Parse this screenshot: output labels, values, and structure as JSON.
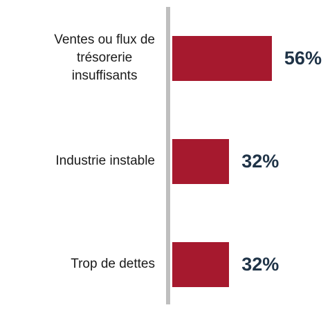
{
  "chart_data": {
    "type": "bar",
    "orientation": "horizontal",
    "categories": [
      "Ventes ou flux de\ntrésorerie\ninsuffisants",
      "Industrie instable",
      "Trop de dettes"
    ],
    "values": [
      56,
      32,
      32
    ],
    "value_labels": [
      "56%",
      "32%",
      "32%"
    ],
    "color": "#a6192e"
  }
}
